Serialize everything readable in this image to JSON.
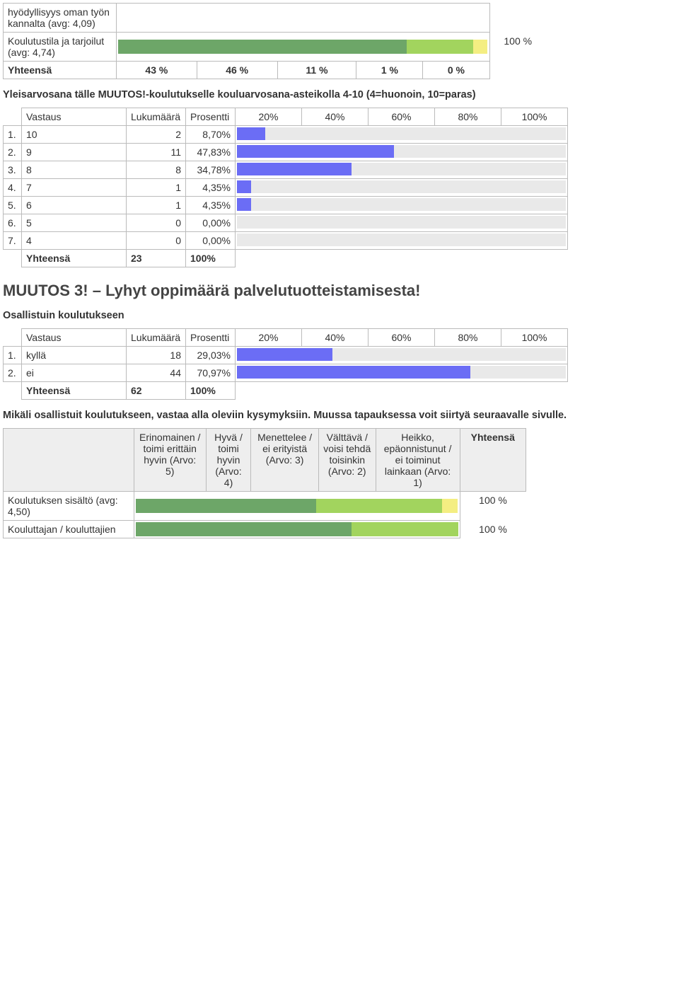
{
  "colors": {
    "bar_blue": "#6b6df5",
    "bar_bg": "#e9e9e9",
    "seg_dark_green": "#6da668",
    "seg_light_green": "#a2d45e",
    "seg_yellow": "#f4ee82",
    "seg_orange": "#f0a050",
    "seg_red": "#e05050",
    "header_grey": "#eeeeee"
  },
  "top_ratings": {
    "items": [
      {
        "label": "hyödyllisyys oman työn kannalta (avg: 4,09)",
        "segments": [],
        "total": ""
      },
      {
        "label": "Koulutustila ja tarjoilut (avg: 4,74)",
        "segments": [
          {
            "color": "seg_dark_green",
            "pct": 78
          },
          {
            "color": "seg_light_green",
            "pct": 18
          },
          {
            "color": "seg_yellow",
            "pct": 4
          }
        ],
        "total": "100 %"
      }
    ],
    "totals_row_label": "Yhteensä",
    "totals": [
      "43 %",
      "46 %",
      "11 %",
      "1 %",
      "0 %"
    ]
  },
  "grade_question": {
    "title": "Yleisarvosana tälle MUUTOS!-koulutukselle kouluarvosana-asteikolla 4-10 (4=huonoin, 10=paras)",
    "headers": {
      "answer": "Vastaus",
      "count": "Lukumäärä",
      "pct": "Prosentti",
      "ticks": [
        "20%",
        "40%",
        "60%",
        "80%",
        "100%"
      ]
    },
    "rows": [
      {
        "idx": "1.",
        "answer": "10",
        "count": "2",
        "pct": "8,70%",
        "bar": 8.7
      },
      {
        "idx": "2.",
        "answer": "9",
        "count": "11",
        "pct": "47,83%",
        "bar": 47.83
      },
      {
        "idx": "3.",
        "answer": "8",
        "count": "8",
        "pct": "34,78%",
        "bar": 34.78
      },
      {
        "idx": "4.",
        "answer": "7",
        "count": "1",
        "pct": "4,35%",
        "bar": 4.35
      },
      {
        "idx": "5.",
        "answer": "6",
        "count": "1",
        "pct": "4,35%",
        "bar": 4.35
      },
      {
        "idx": "6.",
        "answer": "5",
        "count": "0",
        "pct": "0,00%",
        "bar": 0.0
      },
      {
        "idx": "7.",
        "answer": "4",
        "count": "0",
        "pct": "0,00%",
        "bar": 0.0
      }
    ],
    "total_label": "Yhteensä",
    "total_count": "23",
    "total_pct": "100%"
  },
  "section_heading": "MUUTOS 3! – Lyhyt oppimäärä palvelutuotteistamisesta!",
  "attend_question": {
    "title": "Osallistuin koulutukseen",
    "headers": {
      "answer": "Vastaus",
      "count": "Lukumäärä",
      "pct": "Prosentti",
      "ticks": [
        "20%",
        "40%",
        "60%",
        "80%",
        "100%"
      ]
    },
    "rows": [
      {
        "idx": "1.",
        "answer": "kyllä",
        "count": "18",
        "pct": "29,03%",
        "bar": 29.03
      },
      {
        "idx": "2.",
        "answer": "ei",
        "count": "44",
        "pct": "70,97%",
        "bar": 70.97
      }
    ],
    "total_label": "Yhteensä",
    "total_count": "62",
    "total_pct": "100%"
  },
  "ratings2_intro": "Mikäli osallistuit koulutukseen, vastaa alla oleviin kysymyksiin. Muussa tapauksessa voit siirtyä seuraavalle sivulle.",
  "ratings2_headers": [
    "Erinomainen / toimi erittäin hyvin (Arvo: 5)",
    "Hyvä / toimi hyvin (Arvo: 4)",
    "Menettelee / ei erityistä (Arvo: 3)",
    "Välttävä / voisi tehdä toisinkin (Arvo: 2)",
    "Heikko, epäonnistunut / ei toiminut lainkaan (Arvo: 1)",
    "Yhteensä"
  ],
  "ratings2_items": [
    {
      "label": "Koulutuksen sisältö (avg: 4,50)",
      "segments": [
        {
          "color": "seg_dark_green",
          "pct": 56
        },
        {
          "color": "seg_light_green",
          "pct": 39
        },
        {
          "color": "seg_yellow",
          "pct": 5
        }
      ],
      "total": "100 %"
    },
    {
      "label": "Kouluttajan / kouluttajien",
      "segments": [
        {
          "color": "seg_dark_green",
          "pct": 67
        },
        {
          "color": "seg_light_green",
          "pct": 33
        }
      ],
      "total": "100 %"
    }
  ]
}
